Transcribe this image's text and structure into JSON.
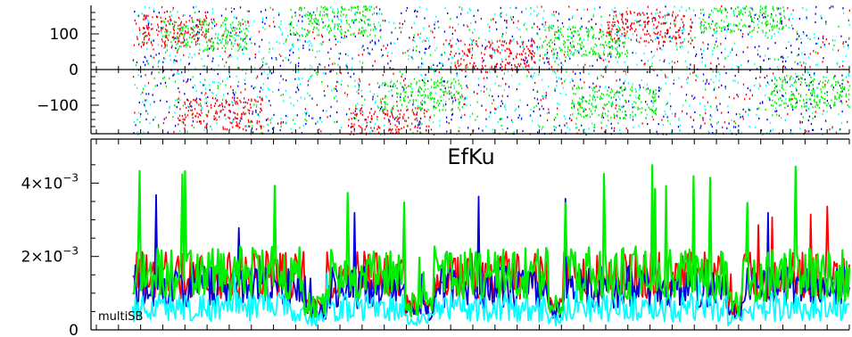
{
  "colors": {
    "red": "#ff0000",
    "blue": "#0000dd",
    "cyan": "#00ffff",
    "green": "#00ee00",
    "axis": "#000000",
    "background": "#ffffff"
  },
  "chart_data": [
    {
      "type": "scatter",
      "title": "",
      "xlabel": "",
      "ylabel": "",
      "ylim": [
        -180,
        180
      ],
      "grid": false,
      "yticks": [
        {
          "value": 100,
          "label": "100"
        },
        {
          "value": 0,
          "label": "0"
        },
        {
          "value": -100,
          "label": "−100"
        }
      ],
      "x_data_start_fraction": 0.055,
      "series": [
        {
          "color": "red",
          "clusters": [
            [
              0.05,
              110
            ],
            [
              0.5,
              40
            ],
            [
              0.72,
              120
            ],
            [
              0.12,
              -120
            ],
            [
              0.36,
              -150
            ]
          ]
        },
        {
          "color": "green",
          "clusters": [
            [
              0.1,
              100
            ],
            [
              0.28,
              140
            ],
            [
              0.63,
              80
            ],
            [
              0.85,
              150
            ],
            [
              0.4,
              -70
            ],
            [
              0.67,
              -90
            ],
            [
              0.95,
              -60
            ]
          ]
        },
        {
          "color": "blue",
          "clusters": []
        },
        {
          "color": "cyan",
          "clusters": []
        }
      ]
    },
    {
      "type": "line",
      "title": "EfKu",
      "xlabel": "",
      "ylabel": "",
      "ylim": [
        0,
        0.0052
      ],
      "grid": false,
      "annotation": "multiSB",
      "yticks": [
        {
          "value": 0.004,
          "base": "4×10",
          "exp": "−3"
        },
        {
          "value": 0.002,
          "base": "2×10",
          "exp": "−3"
        },
        {
          "value": 0,
          "label": "0"
        }
      ],
      "x_data_start_fraction": 0.055,
      "series": [
        {
          "color": "red",
          "base": 0.0013,
          "amplitude": 0.0013,
          "peak": 0.0038
        },
        {
          "color": "blue",
          "base": 0.001,
          "amplitude": 0.0012,
          "peak": 0.0037
        },
        {
          "color": "cyan",
          "base": 0.0005,
          "amplitude": 0.0008,
          "peak": 0.0016
        },
        {
          "color": "green",
          "base": 0.0013,
          "amplitude": 0.0015,
          "peak": 0.0045
        }
      ],
      "gaps": [
        [
          0.24,
          0.27
        ],
        [
          0.38,
          0.42
        ],
        [
          0.58,
          0.6
        ],
        [
          0.83,
          0.85
        ]
      ]
    }
  ]
}
